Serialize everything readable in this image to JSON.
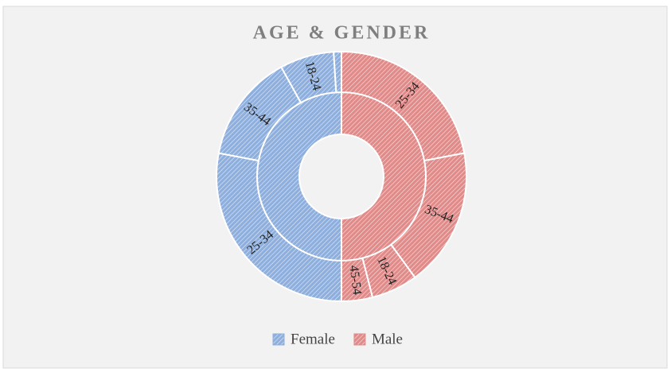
{
  "chart_data": {
    "type": "sunburst",
    "title": "AGE & GENDER",
    "inner": {
      "categories": [
        "Male",
        "Female"
      ],
      "values": [
        50,
        50
      ],
      "colors": [
        "#e08b89",
        "#8eafdd"
      ]
    },
    "outer": {
      "labels": [
        "25-34",
        "35-44",
        "18-24",
        "45-54",
        "25-34",
        "35-44",
        "18-24",
        null
      ],
      "values": [
        22,
        18,
        6,
        4,
        28,
        14,
        7,
        1
      ],
      "parent": [
        0,
        0,
        0,
        0,
        1,
        1,
        1,
        1
      ]
    },
    "legend": "bottom"
  }
}
